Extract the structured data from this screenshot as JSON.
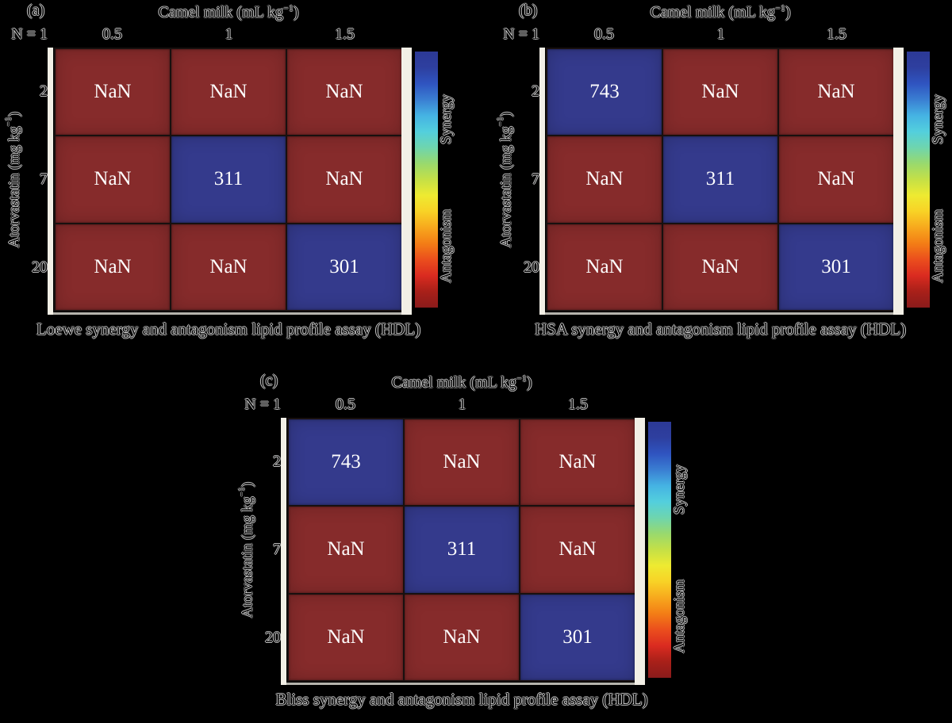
{
  "figure": {
    "colors": {
      "nan_cell": "#862b2b",
      "value_cell": "#343a8c",
      "axis_strip": "#f2efe6",
      "cell_text": "#ffffff"
    },
    "colorbar": {
      "top_label": "Synergy",
      "bottom_label": "Antagonism",
      "colors": [
        "#2c3996",
        "#2e3f9f",
        "#2f54c0",
        "#3a7ed2",
        "#45b3e3",
        "#53cfdd",
        "#6ed5ae",
        "#99d96d",
        "#c5e046",
        "#eeea31",
        "#f8d226",
        "#f7a81d",
        "#f37d16",
        "#eb4e1d",
        "#da2b20",
        "#a82019",
        "#8a1b1b"
      ]
    },
    "panels": [
      {
        "tag": "(a)",
        "x_title_prefix": "Camel milk (mL kg",
        "x_title_sup": "−1",
        "x_title_suffix": ")",
        "n_label": "N = 1",
        "x_ticks": [
          "0.5",
          "1",
          "1.5"
        ],
        "y_title_prefix": "Atorvastatin (mg kg",
        "y_title_sup": "−1",
        "y_title_suffix": ")",
        "y_ticks": [
          "2",
          "7",
          "20"
        ],
        "cells": [
          [
            "NaN",
            "NaN",
            "NaN"
          ],
          [
            "NaN",
            "311",
            "NaN"
          ],
          [
            "NaN",
            "NaN",
            "301"
          ]
        ],
        "caption": "Loewe synergy and antagonism lipid profile assay (HDL)"
      },
      {
        "tag": "(b)",
        "x_title_prefix": "Camel milk (mL kg",
        "x_title_sup": "−1",
        "x_title_suffix": ")",
        "n_label": "N = 1",
        "x_ticks": [
          "0.5",
          "1",
          "1.5"
        ],
        "y_title_prefix": "Atorvastatin (mg kg",
        "y_title_sup": "−1",
        "y_title_suffix": ")",
        "y_ticks": [
          "2",
          "7",
          "20"
        ],
        "cells": [
          [
            "743",
            "NaN",
            "NaN"
          ],
          [
            "NaN",
            "311",
            "NaN"
          ],
          [
            "NaN",
            "NaN",
            "301"
          ]
        ],
        "caption": "HSA synergy and antagonism lipid profile assay (HDL)"
      },
      {
        "tag": "(c)",
        "x_title_prefix": "Camel milk (mL kg",
        "x_title_sup": "−1",
        "x_title_suffix": ")",
        "n_label": "N = 1",
        "x_ticks": [
          "0.5",
          "1",
          "1.5"
        ],
        "y_title_prefix": "Atorvastatin (mg kg",
        "y_title_sup": "−1",
        "y_title_suffix": ")",
        "y_ticks": [
          "2",
          "7",
          "20"
        ],
        "cells": [
          [
            "743",
            "NaN",
            "NaN"
          ],
          [
            "NaN",
            "311",
            "NaN"
          ],
          [
            "NaN",
            "NaN",
            "301"
          ]
        ],
        "caption": "Bliss synergy and antagonism lipid profile assay (HDL)"
      }
    ]
  },
  "chart_data": [
    {
      "type": "heatmap",
      "title": "Loewe synergy and antagonism lipid profile assay (HDL)",
      "panel": "(a)",
      "n": "N = 1",
      "xlabel": "Camel milk (mL kg−1)",
      "ylabel": "Atorvastatin (mg kg−1)",
      "x": [
        0.5,
        1,
        1.5
      ],
      "y": [
        2,
        7,
        20
      ],
      "values": [
        [
          null,
          null,
          null
        ],
        [
          null,
          311,
          null
        ],
        [
          null,
          null,
          301
        ]
      ],
      "value_labels": [
        [
          "NaN",
          "NaN",
          "NaN"
        ],
        [
          "NaN",
          "311",
          "NaN"
        ],
        [
          "NaN",
          "NaN",
          "301"
        ]
      ],
      "colorbar_labels": [
        "Synergy",
        "Antagonism"
      ],
      "legend_position": "right"
    },
    {
      "type": "heatmap",
      "title": "HSA synergy and antagonism lipid profile assay (HDL)",
      "panel": "(b)",
      "n": "N = 1",
      "xlabel": "Camel milk (mL kg−1)",
      "ylabel": "Atorvastatin (mg kg−1)",
      "x": [
        0.5,
        1,
        1.5
      ],
      "y": [
        2,
        7,
        20
      ],
      "values": [
        [
          743,
          null,
          null
        ],
        [
          null,
          311,
          null
        ],
        [
          null,
          null,
          301
        ]
      ],
      "value_labels": [
        [
          "743",
          "NaN",
          "NaN"
        ],
        [
          "NaN",
          "311",
          "NaN"
        ],
        [
          "NaN",
          "NaN",
          "301"
        ]
      ],
      "colorbar_labels": [
        "Synergy",
        "Antagonism"
      ],
      "legend_position": "right"
    },
    {
      "type": "heatmap",
      "title": "Bliss synergy and antagonism lipid profile assay (HDL)",
      "panel": "(c)",
      "n": "N = 1",
      "xlabel": "Camel milk (mL kg−1)",
      "ylabel": "Atorvastatin (mg kg−1)",
      "x": [
        0.5,
        1,
        1.5
      ],
      "y": [
        2,
        7,
        20
      ],
      "values": [
        [
          743,
          null,
          null
        ],
        [
          null,
          311,
          null
        ],
        [
          null,
          null,
          301
        ]
      ],
      "value_labels": [
        [
          "743",
          "NaN",
          "NaN"
        ],
        [
          "NaN",
          "311",
          "NaN"
        ],
        [
          "NaN",
          "NaN",
          "301"
        ]
      ],
      "colorbar_labels": [
        "Synergy",
        "Antagonism"
      ],
      "legend_position": "right"
    }
  ]
}
